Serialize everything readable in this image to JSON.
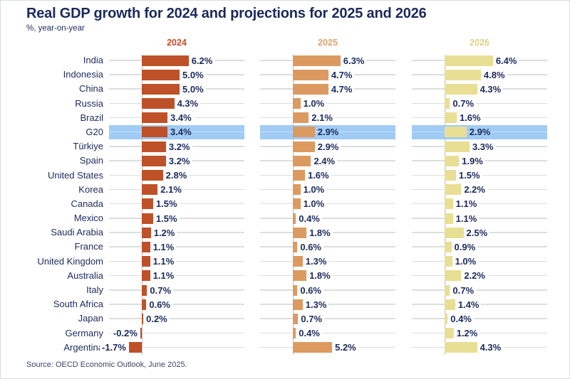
{
  "title": "Real GDP growth for 2024 and projections for 2025 and 2026",
  "subtitle": "%, year-on-year",
  "source": "Source: OECD Economic Outlook, June 2025.",
  "colors": {
    "title_navy": "#1b2a5c",
    "highlight_band": "#a0cbf4",
    "gridline": "#dcdedf",
    "header_2024": "#c24b22",
    "header_2025": "#e0a169",
    "header_2026": "#ddd180"
  },
  "chart_data": {
    "type": "bar",
    "orientation": "horizontal",
    "title": "Real GDP growth for 2024 and projections for 2025 and 2026",
    "units": "%, year-on-year",
    "grid": true,
    "xlim": [
      -4.3,
      13.5
    ],
    "highlight_category": "G20",
    "categories": [
      "India",
      "Indonesia",
      "China",
      "Russia",
      "Brazil",
      "G20",
      "Türkiye",
      "Spain",
      "United States",
      "Korea",
      "Canada",
      "Mexico",
      "Saudi Arabia",
      "France",
      "United Kingdom",
      "Australia",
      "Italy",
      "South Africa",
      "Japan",
      "Germany",
      "Argentina"
    ],
    "series": [
      {
        "name": "2024",
        "color": "#bf5128",
        "header_color": "#c24b22",
        "values": [
          6.2,
          5.0,
          5.0,
          4.3,
          3.4,
          3.4,
          3.2,
          3.2,
          2.8,
          2.1,
          1.5,
          1.5,
          1.2,
          1.1,
          1.1,
          1.1,
          0.7,
          0.6,
          0.2,
          -0.2,
          -1.7
        ]
      },
      {
        "name": "2025",
        "color": "#dd9a60",
        "header_color": "#e0a169",
        "values": [
          6.3,
          4.7,
          4.7,
          1.0,
          2.1,
          2.9,
          2.9,
          2.4,
          1.6,
          1.0,
          1.0,
          0.4,
          1.8,
          0.6,
          1.3,
          1.8,
          0.6,
          1.3,
          0.7,
          0.4,
          5.2
        ]
      },
      {
        "name": "2026",
        "color": "#e8df95",
        "header_color": "#ddd180",
        "values": [
          6.4,
          4.8,
          4.3,
          0.7,
          1.6,
          2.9,
          3.3,
          1.9,
          1.5,
          2.2,
          1.1,
          1.1,
          2.5,
          0.9,
          1.0,
          2.2,
          0.7,
          1.4,
          0.4,
          1.2,
          4.3
        ]
      }
    ]
  }
}
